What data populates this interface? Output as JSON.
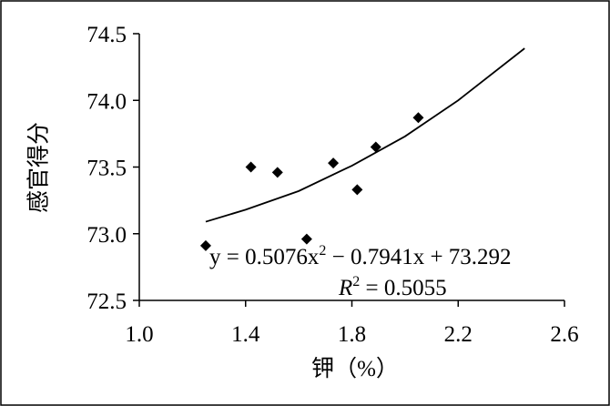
{
  "chart_data": {
    "type": "scatter",
    "x_label": "钾（%）",
    "y_label": "感官得分",
    "xlim": [
      1.0,
      2.6
    ],
    "xticks": [
      {
        "value": 1.0,
        "label": "1.0"
      },
      1.4,
      1.8,
      2.2,
      2.6
    ],
    "ylim": [
      72.5,
      74.5
    ],
    "yticks": [
      72.5,
      {
        "value": 73.0,
        "label": "73.0"
      },
      73.5,
      {
        "value": 74.0,
        "label": "74.0"
      },
      74.5
    ],
    "series": [
      {
        "kind": "points",
        "color": "#000000",
        "x": [
          1.25,
          1.42,
          1.52,
          1.63,
          1.73,
          1.82,
          1.89,
          2.05
        ],
        "values": [
          72.91,
          73.5,
          73.46,
          72.96,
          73.53,
          73.33,
          73.65,
          73.87
        ]
      },
      {
        "kind": "line",
        "color": "#000000",
        "x": [
          1.25,
          1.4,
          1.6,
          1.8,
          2.0,
          2.2,
          2.45
        ],
        "values": [
          73.09,
          73.18,
          73.32,
          73.51,
          73.73,
          74.0,
          74.39
        ]
      }
    ],
    "equation": [
      "y = 0.5076x",
      "2",
      " − 0.7941x + 73.292"
    ],
    "r_squared": [
      "R",
      "2",
      " = 0.5055"
    ]
  }
}
